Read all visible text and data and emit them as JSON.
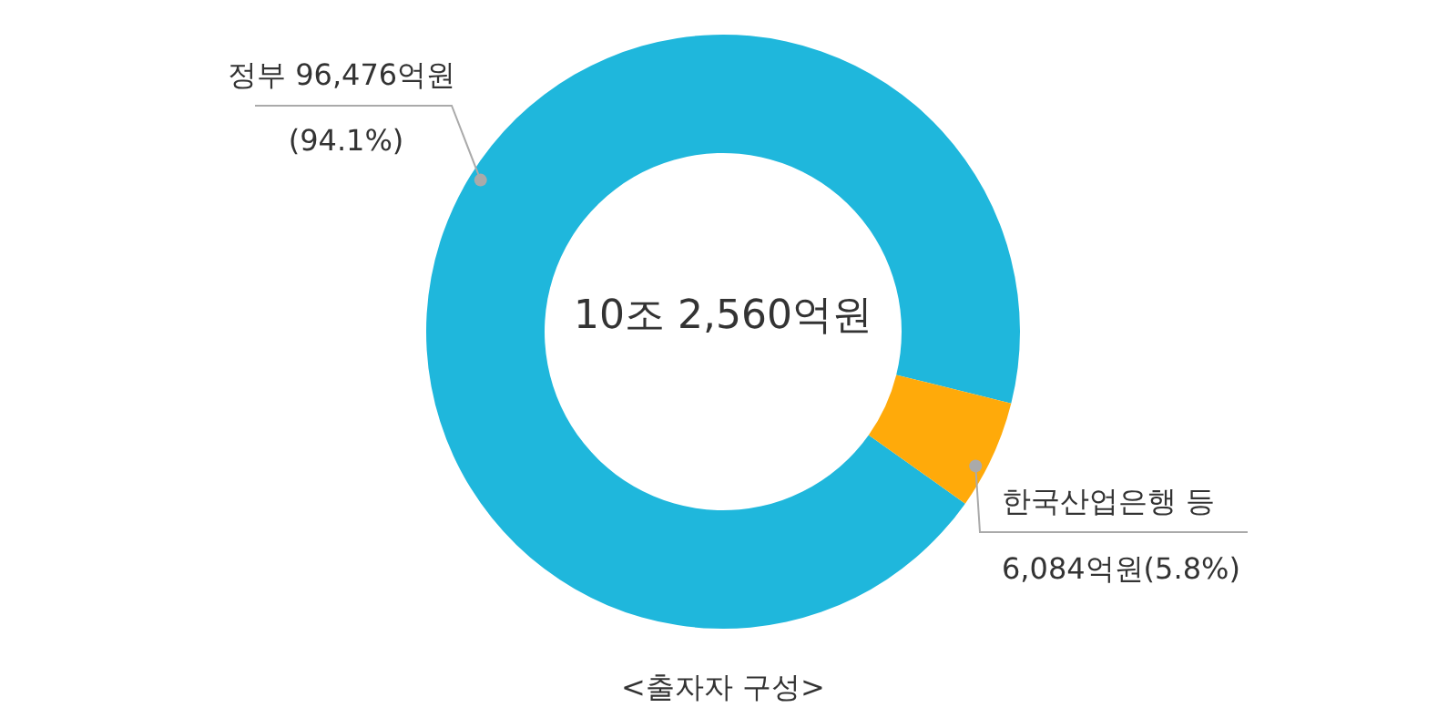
{
  "chart_data": {
    "type": "donut",
    "categories": [
      "정부",
      "한국산업은행 등"
    ],
    "values": [
      96476,
      6084
    ],
    "colors": [
      "#1fb7dc",
      "#ffaa0a"
    ],
    "value_labels": [
      "96,476억원",
      "6,084억원"
    ],
    "annotations": [
      "10조 2,560억원",
      "(94.1%)",
      "(5.8%)",
      "<출자자 구성>"
    ]
  }
}
